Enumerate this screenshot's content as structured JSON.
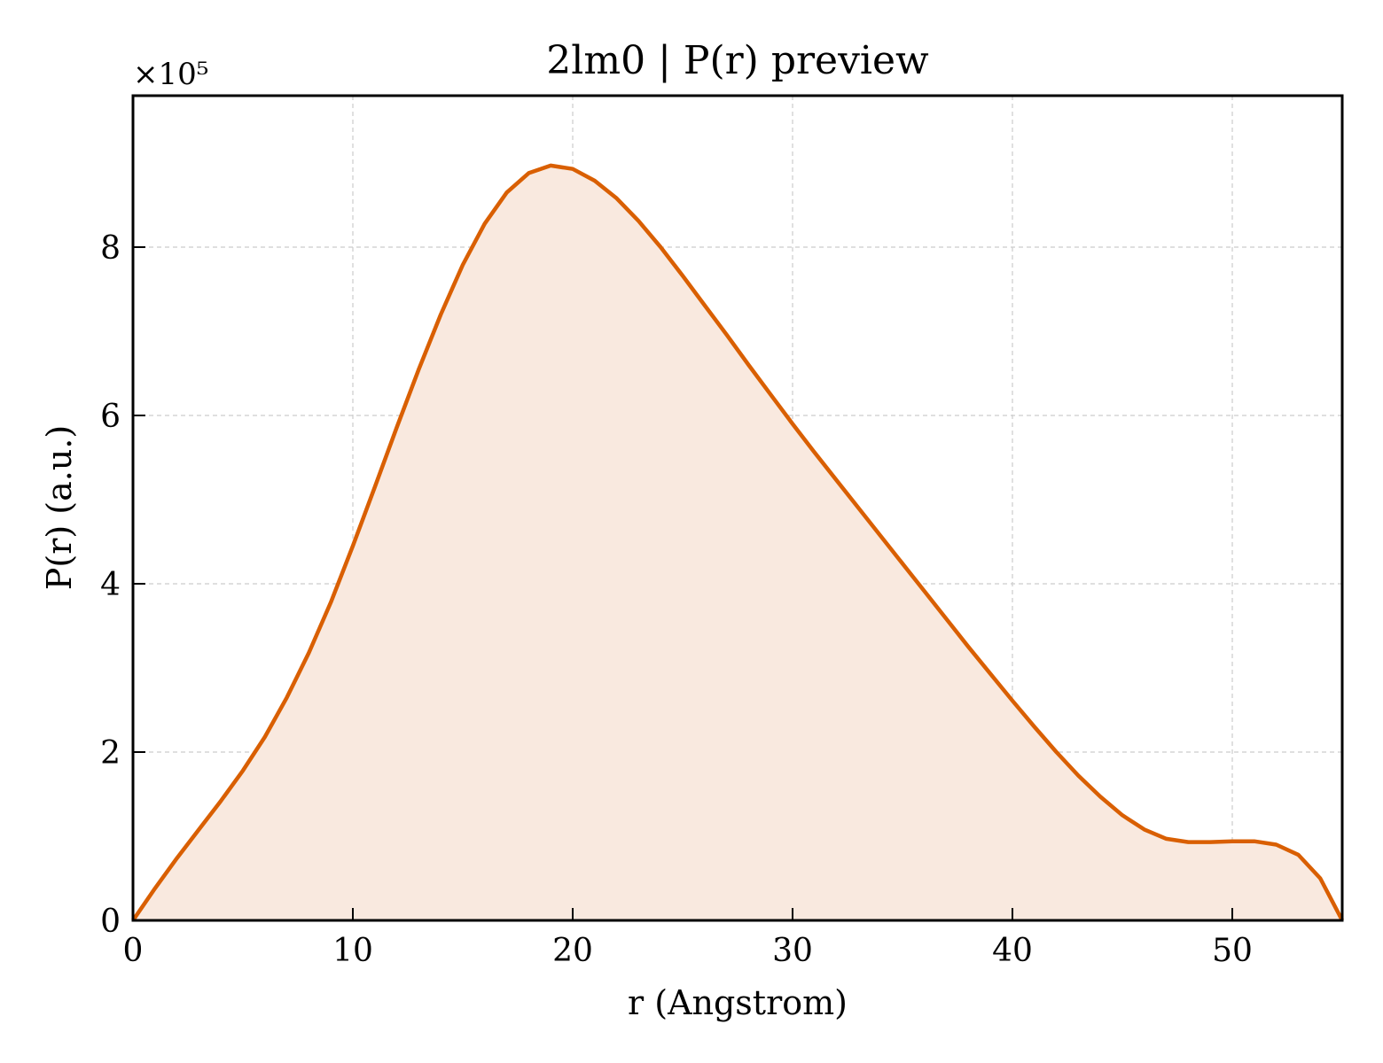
{
  "chart_data": {
    "type": "area",
    "title": "2lm0 | P(r) preview",
    "xlabel": "r (Angstrom)",
    "ylabel": "P(r) (a.u.)",
    "y_multiplier_label": "×10⁵",
    "y_scale": 100000,
    "xlim": [
      0,
      55
    ],
    "ylim": [
      0,
      9.8
    ],
    "xticks": [
      0,
      10,
      20,
      30,
      40,
      50
    ],
    "yticks": [
      0,
      2,
      4,
      6,
      8
    ],
    "grid": true,
    "line_color": "#d95f02",
    "fill_color": "#f9e9df",
    "series": [
      {
        "x": [
          0,
          1,
          2,
          3,
          4,
          5,
          6,
          7,
          8,
          9,
          10,
          11,
          12,
          13,
          14,
          15,
          16,
          17,
          18,
          19,
          20,
          21,
          22,
          23,
          24,
          25,
          26,
          27,
          28,
          29,
          30,
          31,
          32,
          33,
          34,
          35,
          36,
          37,
          38,
          39,
          40,
          41,
          42,
          43,
          44,
          45,
          46,
          47,
          48,
          49,
          50,
          51,
          52,
          53,
          54,
          55
        ],
        "values": [
          0.0,
          0.38,
          0.74,
          1.08,
          1.42,
          1.78,
          2.18,
          2.65,
          3.18,
          3.78,
          4.45,
          5.15,
          5.86,
          6.55,
          7.2,
          7.79,
          8.28,
          8.65,
          8.88,
          8.97,
          8.93,
          8.79,
          8.58,
          8.31,
          8.0,
          7.66,
          7.31,
          6.96,
          6.6,
          6.25,
          5.9,
          5.56,
          5.23,
          4.9,
          4.57,
          4.24,
          3.91,
          3.58,
          3.25,
          2.93,
          2.61,
          2.3,
          2.0,
          1.72,
          1.47,
          1.25,
          1.08,
          0.97,
          0.93,
          0.93,
          0.94,
          0.94,
          0.9,
          0.78,
          0.5,
          0.0
        ]
      }
    ]
  }
}
